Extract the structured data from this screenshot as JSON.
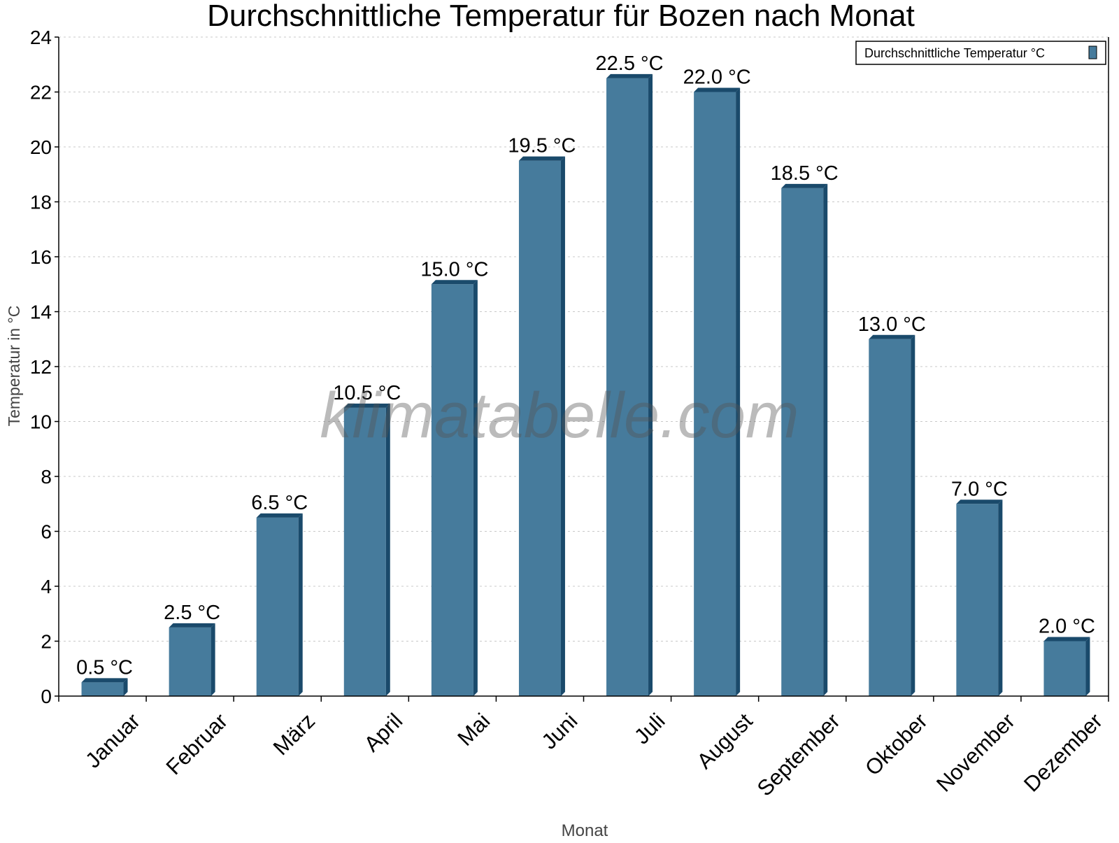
{
  "chart_data": {
    "type": "bar",
    "title": "Durchschnittliche Temperatur für Bozen nach Monat",
    "xlabel": "Monat",
    "ylabel": "Temperatur in °C",
    "categories": [
      "Januar",
      "Februar",
      "März",
      "April",
      "Mai",
      "Juni",
      "Juli",
      "August",
      "September",
      "Oktober",
      "November",
      "Dezember"
    ],
    "series": [
      {
        "name": "Durchschnittliche Temperatur °C",
        "values": [
          0.5,
          2.5,
          6.5,
          10.5,
          15.0,
          19.5,
          22.5,
          22.0,
          18.5,
          13.0,
          7.0,
          2.0
        ]
      }
    ],
    "data_labels": [
      "0.5 °C",
      "2.5 °C",
      "6.5 °C",
      "10.5 °C",
      "15.0 °C",
      "19.5 °C",
      "22.5 °C",
      "22.0 °C",
      "18.5 °C",
      "13.0 °C",
      "7.0 °C",
      "2.0 °C"
    ],
    "ylim": [
      0,
      24
    ],
    "yticks": [
      0,
      2,
      4,
      6,
      8,
      10,
      12,
      14,
      16,
      18,
      20,
      22,
      24
    ],
    "grid": "horizontal dotted",
    "legend_position": "top-right",
    "colors": {
      "bar": "#467b9c",
      "bar_side": "#1a4a6b",
      "grid": "#c8c8c8",
      "axis_label": "#444444"
    },
    "watermark": "klimatabelle.com"
  }
}
